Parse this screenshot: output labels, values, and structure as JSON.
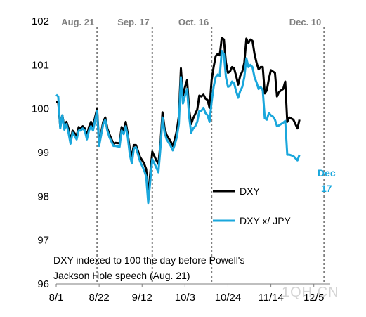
{
  "chart_data": {
    "type": "line",
    "xlabel": "",
    "ylabel": "",
    "ylim": [
      96,
      102
    ],
    "xlim": [
      0,
      134
    ],
    "yticks": [
      96,
      97,
      98,
      99,
      100,
      101,
      102
    ],
    "xticks": [
      {
        "label": "8/1",
        "x": 0
      },
      {
        "label": "8/22",
        "x": 21
      },
      {
        "label": "9/12",
        "x": 42
      },
      {
        "label": "10/3",
        "x": 63
      },
      {
        "label": "10/24",
        "x": 84
      },
      {
        "label": "11/14",
        "x": 105
      },
      {
        "label": "12/5",
        "x": 126
      }
    ],
    "vlines": [
      {
        "label": "Aug. 21",
        "x": 20
      },
      {
        "label": "Sep. 17",
        "x": 47
      },
      {
        "label": "Oct. 16",
        "x": 76
      },
      {
        "label": "Dec. 10",
        "x": 131
      }
    ],
    "series": [
      {
        "name": "DXY",
        "color": "#000000",
        "points": [
          [
            0,
            100.15
          ],
          [
            1,
            100.15
          ],
          [
            2,
            99.58
          ],
          [
            3,
            99.85
          ],
          [
            4,
            99.58
          ],
          [
            5,
            99.7
          ],
          [
            6,
            99.55
          ],
          [
            7,
            99.25
          ],
          [
            8,
            99.5
          ],
          [
            10,
            99.38
          ],
          [
            11,
            99.58
          ],
          [
            12,
            99.55
          ],
          [
            13,
            99.6
          ],
          [
            14,
            99.55
          ],
          [
            15,
            99.38
          ],
          [
            16,
            99.58
          ],
          [
            17,
            99.7
          ],
          [
            18,
            99.6
          ],
          [
            20,
            100.0
          ],
          [
            21,
            99.2
          ],
          [
            22,
            99.45
          ],
          [
            23,
            99.7
          ],
          [
            24,
            99.8
          ],
          [
            25,
            99.55
          ],
          [
            26,
            99.42
          ],
          [
            28,
            99.2
          ],
          [
            29,
            99.22
          ],
          [
            31,
            99.21
          ],
          [
            32,
            99.58
          ],
          [
            33,
            99.5
          ],
          [
            34,
            99.7
          ],
          [
            35,
            99.42
          ],
          [
            36,
            99.07
          ],
          [
            37,
            98.93
          ],
          [
            38,
            99.17
          ],
          [
            39,
            99.17
          ],
          [
            41,
            98.9
          ],
          [
            43,
            98.75
          ],
          [
            44,
            98.62
          ],
          [
            45,
            98.02
          ],
          [
            47,
            99.02
          ],
          [
            49,
            98.82
          ],
          [
            50,
            98.74
          ],
          [
            51,
            99.2
          ],
          [
            52,
            99.92
          ],
          [
            53,
            99.55
          ],
          [
            54,
            99.4
          ],
          [
            56,
            99.25
          ],
          [
            57,
            99.15
          ],
          [
            58,
            99.3
          ],
          [
            59,
            99.5
          ],
          [
            60,
            99.83
          ],
          [
            61,
            100.92
          ],
          [
            62,
            100.3
          ],
          [
            63,
            100.5
          ],
          [
            64,
            100.65
          ],
          [
            65,
            99.98
          ],
          [
            66,
            99.65
          ],
          [
            67,
            99.78
          ],
          [
            68,
            99.88
          ],
          [
            69,
            99.98
          ],
          [
            70,
            100.3
          ],
          [
            71,
            100.28
          ],
          [
            72,
            100.32
          ],
          [
            73,
            100.23
          ],
          [
            74,
            100.2
          ],
          [
            75,
            100.02
          ],
          [
            76,
            100.65
          ],
          [
            77,
            100.95
          ],
          [
            78,
            101.2
          ],
          [
            79,
            101.25
          ],
          [
            80,
            101.22
          ],
          [
            81,
            101.62
          ],
          [
            82,
            101.58
          ],
          [
            83,
            101.05
          ],
          [
            84,
            100.82
          ],
          [
            85,
            100.85
          ],
          [
            86,
            100.95
          ],
          [
            87,
            100.92
          ],
          [
            88,
            100.75
          ],
          [
            89,
            100.55
          ],
          [
            90,
            100.75
          ],
          [
            91,
            100.85
          ],
          [
            92,
            101.05
          ],
          [
            93,
            101.6
          ],
          [
            94,
            101.5
          ],
          [
            95,
            101.58
          ],
          [
            96,
            101.55
          ],
          [
            97,
            101.25
          ],
          [
            98,
            101.05
          ],
          [
            99,
            100.9
          ],
          [
            100,
            100.95
          ],
          [
            101,
            100.95
          ],
          [
            102,
            100.35
          ],
          [
            103,
            100.42
          ],
          [
            104,
            100.68
          ],
          [
            105,
            100.88
          ],
          [
            106,
            100.85
          ],
          [
            107,
            100.82
          ],
          [
            108,
            100.28
          ],
          [
            109,
            100.38
          ],
          [
            110,
            100.42
          ],
          [
            111,
            100.45
          ],
          [
            112,
            100.62
          ],
          [
            113,
            99.7
          ],
          [
            114,
            99.8
          ],
          [
            116,
            99.75
          ],
          [
            118,
            99.55
          ],
          [
            119,
            99.75
          ]
        ]
      },
      {
        "name": "DXY x/ JPY",
        "color": "#1aa7dc",
        "points": [
          [
            0,
            100.32
          ],
          [
            1,
            100.28
          ],
          [
            2,
            99.55
          ],
          [
            3,
            99.85
          ],
          [
            4,
            99.52
          ],
          [
            5,
            99.65
          ],
          [
            6,
            99.45
          ],
          [
            7,
            99.2
          ],
          [
            8,
            99.45
          ],
          [
            10,
            99.3
          ],
          [
            11,
            99.5
          ],
          [
            12,
            99.5
          ],
          [
            13,
            99.55
          ],
          [
            14,
            99.5
          ],
          [
            15,
            99.3
          ],
          [
            16,
            99.5
          ],
          [
            17,
            99.6
          ],
          [
            18,
            99.5
          ],
          [
            20,
            99.95
          ],
          [
            21,
            99.15
          ],
          [
            22,
            99.4
          ],
          [
            23,
            99.65
          ],
          [
            24,
            99.75
          ],
          [
            25,
            99.5
          ],
          [
            26,
            99.35
          ],
          [
            28,
            99.15
          ],
          [
            29,
            99.15
          ],
          [
            31,
            99.13
          ],
          [
            32,
            99.5
          ],
          [
            33,
            99.42
          ],
          [
            34,
            99.6
          ],
          [
            35,
            99.35
          ],
          [
            36,
            98.95
          ],
          [
            37,
            98.75
          ],
          [
            38,
            99.1
          ],
          [
            39,
            99.12
          ],
          [
            41,
            98.8
          ],
          [
            43,
            98.6
          ],
          [
            44,
            98.45
          ],
          [
            45,
            97.85
          ],
          [
            47,
            98.85
          ],
          [
            49,
            98.65
          ],
          [
            50,
            98.55
          ],
          [
            51,
            99.1
          ],
          [
            52,
            99.8
          ],
          [
            53,
            99.45
          ],
          [
            54,
            99.3
          ],
          [
            56,
            99.15
          ],
          [
            57,
            99.05
          ],
          [
            58,
            99.18
          ],
          [
            59,
            99.35
          ],
          [
            60,
            99.65
          ],
          [
            61,
            100.72
          ],
          [
            62,
            100.12
          ],
          [
            63,
            100.3
          ],
          [
            64,
            100.45
          ],
          [
            65,
            99.83
          ],
          [
            66,
            99.45
          ],
          [
            67,
            99.55
          ],
          [
            68,
            99.6
          ],
          [
            69,
            99.7
          ],
          [
            70,
            99.95
          ],
          [
            71,
            99.95
          ],
          [
            72,
            100.02
          ],
          [
            73,
            99.9
          ],
          [
            74,
            99.85
          ],
          [
            75,
            99.7
          ],
          [
            76,
            100.15
          ],
          [
            77,
            100.5
          ],
          [
            78,
            100.72
          ],
          [
            79,
            100.78
          ],
          [
            80,
            100.75
          ],
          [
            81,
            101.32
          ],
          [
            82,
            101.25
          ],
          [
            83,
            100.72
          ],
          [
            84,
            100.5
          ],
          [
            85,
            100.52
          ],
          [
            86,
            100.62
          ],
          [
            87,
            100.58
          ],
          [
            88,
            100.4
          ],
          [
            89,
            100.25
          ],
          [
            90,
            100.4
          ],
          [
            91,
            100.5
          ],
          [
            92,
            100.72
          ],
          [
            93,
            101.15
          ],
          [
            94,
            100.95
          ],
          [
            95,
            101.0
          ],
          [
            96,
            100.95
          ],
          [
            97,
            100.72
          ],
          [
            98,
            100.6
          ],
          [
            99,
            100.45
          ],
          [
            100,
            100.5
          ],
          [
            101,
            100.42
          ],
          [
            102,
            99.78
          ],
          [
            103,
            99.75
          ],
          [
            104,
            99.9
          ],
          [
            105,
            99.85
          ],
          [
            106,
            99.82
          ],
          [
            107,
            99.75
          ],
          [
            108,
            99.6
          ],
          [
            109,
            99.62
          ],
          [
            110,
            99.65
          ],
          [
            111,
            99.68
          ],
          [
            112,
            99.72
          ],
          [
            113,
            98.95
          ],
          [
            114,
            98.95
          ],
          [
            116,
            98.92
          ],
          [
            118,
            98.82
          ],
          [
            119,
            98.95
          ]
        ]
      }
    ],
    "legend": [
      {
        "label": "DXY",
        "color": "#000000"
      },
      {
        "label": "DXY x/ JPY",
        "color": "#1aa7dc"
      }
    ],
    "annotation": {
      "line1": "DXY indexed to 100 the day before Powell's",
      "line2": "Jackson Hole speech (Aug. 21)"
    },
    "end_label": {
      "line1": "Dec",
      "line2": "17",
      "color": "#1aa7dc"
    },
    "watermark": "1QH.CN"
  }
}
